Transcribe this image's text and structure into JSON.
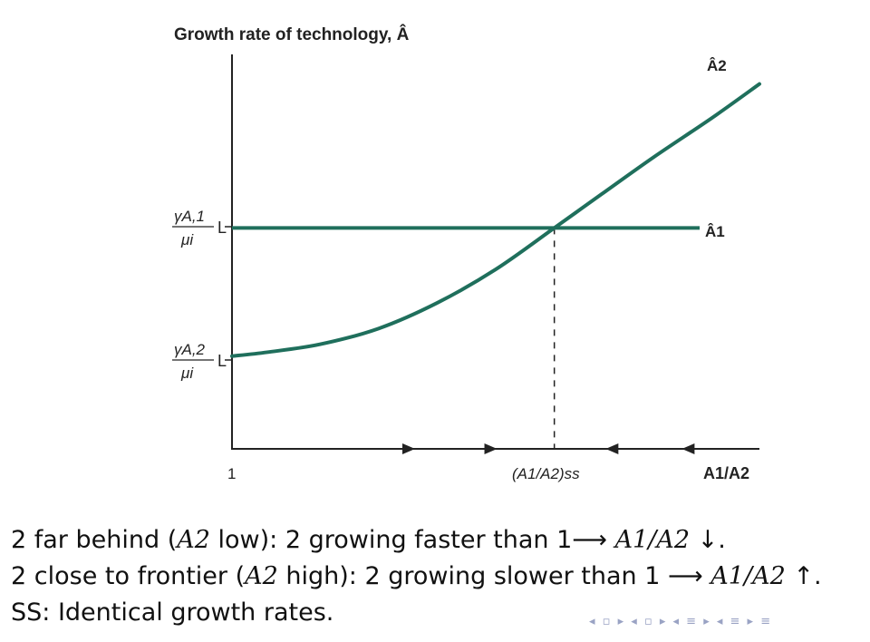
{
  "chart_data": {
    "type": "line",
    "title": "Growth rate of technology, Â",
    "xlabel": "A1/A2",
    "ylabel": "",
    "x_tick_labels": [
      "1",
      "(A1/A2)ss"
    ],
    "y_tick_labels": [
      "γA,1 / μi",
      "γA,2 / μi"
    ],
    "xlim": [
      1,
      10
    ],
    "ylim": [
      0,
      10
    ],
    "series": [
      {
        "name": "Â1",
        "x": [
          1,
          10
        ],
        "y": [
          5.6,
          5.6
        ]
      },
      {
        "name": "Â2",
        "x": [
          1,
          1.6,
          2.5,
          3.5,
          4.5,
          5.5,
          6.5,
          7.3,
          8.2,
          9.2,
          10
        ],
        "y": [
          2.35,
          2.45,
          2.65,
          3.05,
          3.7,
          4.55,
          5.6,
          6.45,
          7.4,
          8.4,
          9.25
        ]
      }
    ],
    "steady_state": {
      "x": 6.5,
      "y": 5.6
    },
    "arrows": [
      {
        "at": 4.0,
        "direction": "right"
      },
      {
        "at": 5.4,
        "direction": "right"
      },
      {
        "at": 7.5,
        "direction": "left"
      },
      {
        "at": 8.8,
        "direction": "left"
      }
    ],
    "line_color": "#1f6f5c",
    "grid": false
  },
  "labels": {
    "title": "Growth rate of technology, Â",
    "ytick1_num": "γA,1",
    "ytick1_den": "μi",
    "ytick2_num": "γA,2",
    "ytick2_den": "μi",
    "xtick_1": "1",
    "xtick_ss": "(A1/A2)ss",
    "xaxis": "A1/A2",
    "series1": "Â1",
    "series2": "Â2"
  },
  "caption": {
    "line1_a": "2 far behind (",
    "line1_b": "A2",
    "line1_c": " low): 2 growing faster than 1⟶ ",
    "line1_d": "A1/A2",
    "line1_e": " ↓.",
    "line2_a": "2 close to frontier (",
    "line2_b": "A2",
    "line2_c": " high): 2 growing slower than 1 ⟶ ",
    "line2_d": "A1/A2",
    "line2_e": " ↑.",
    "line3": "SS: Identical growth rates."
  },
  "nav_symbols": "◂ ▫ ▸ ◂ ▫ ▸ ◂ ≡ ▸ ◂ ≡ ▸  ≡"
}
